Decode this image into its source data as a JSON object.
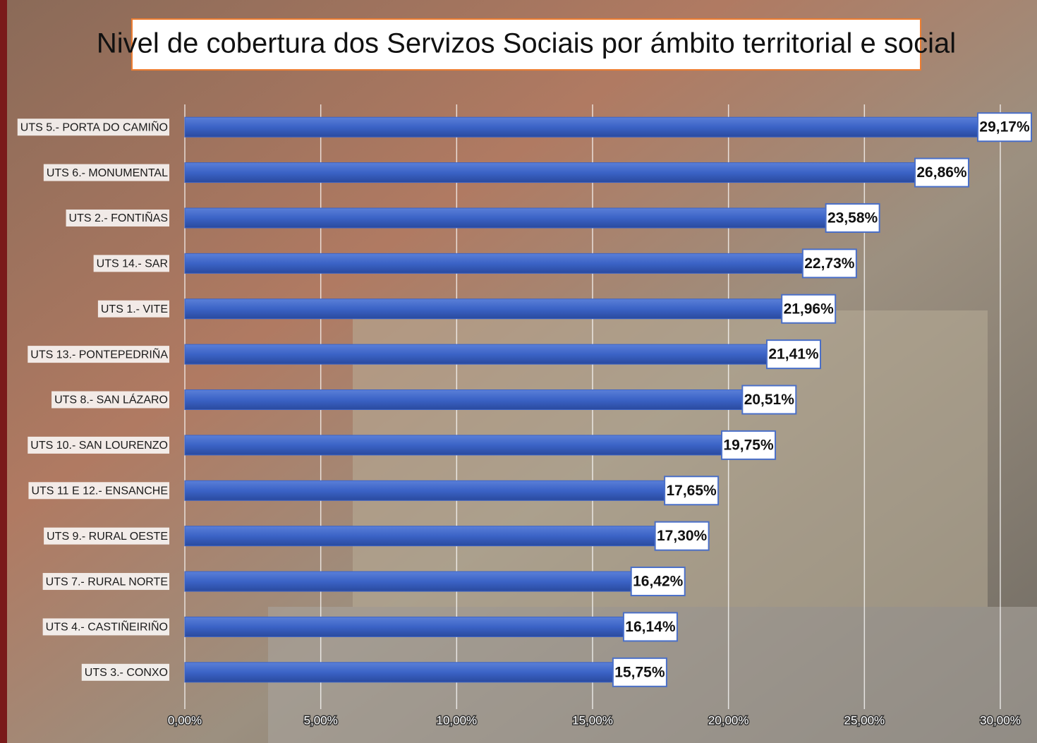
{
  "chart_data": {
    "type": "bar",
    "orientation": "horizontal",
    "title": "Nivel de cobertura dos Servizos Sociais por ámbito territorial e social",
    "categories": [
      "UTS 5.- PORTA DO CAMIÑO",
      "UTS 6.- MONUMENTAL",
      "UTS 2.- FONTIÑAS",
      "UTS 14.- SAR",
      "UTS 1.- VITE",
      "UTS 13.- PONTEPEDRIÑA",
      "UTS 8.- SAN LÁZARO",
      "UTS 10.- SAN LOURENZO",
      "UTS 11 E 12.- ENSANCHE",
      "UTS 9.- RURAL OESTE",
      "UTS 7.- RURAL NORTE",
      "UTS 4.- CASTIÑEIRIÑO",
      "UTS 3.- CONXO"
    ],
    "values": [
      29.17,
      26.86,
      23.58,
      22.73,
      21.96,
      21.41,
      20.51,
      19.75,
      17.65,
      17.3,
      16.42,
      16.14,
      15.75
    ],
    "value_labels": [
      "29,17%",
      "26,86%",
      "23,58%",
      "22,73%",
      "21,96%",
      "21,41%",
      "20,51%",
      "19,75%",
      "17,65%",
      "17,30%",
      "16,42%",
      "16,14%",
      "15,75%"
    ],
    "color": "#3b63c6",
    "xlim": [
      0,
      30
    ],
    "xticks": [
      {
        "value": 0,
        "label": "0,00%"
      },
      {
        "value": 5,
        "label": "5,00%"
      },
      {
        "value": 10,
        "label": "10,00%"
      },
      {
        "value": 15,
        "label": "15,00%"
      },
      {
        "value": 20,
        "label": "20,00%"
      },
      {
        "value": 25,
        "label": "25,00%"
      },
      {
        "value": 30,
        "label": "30,00%"
      }
    ],
    "grid": true
  }
}
